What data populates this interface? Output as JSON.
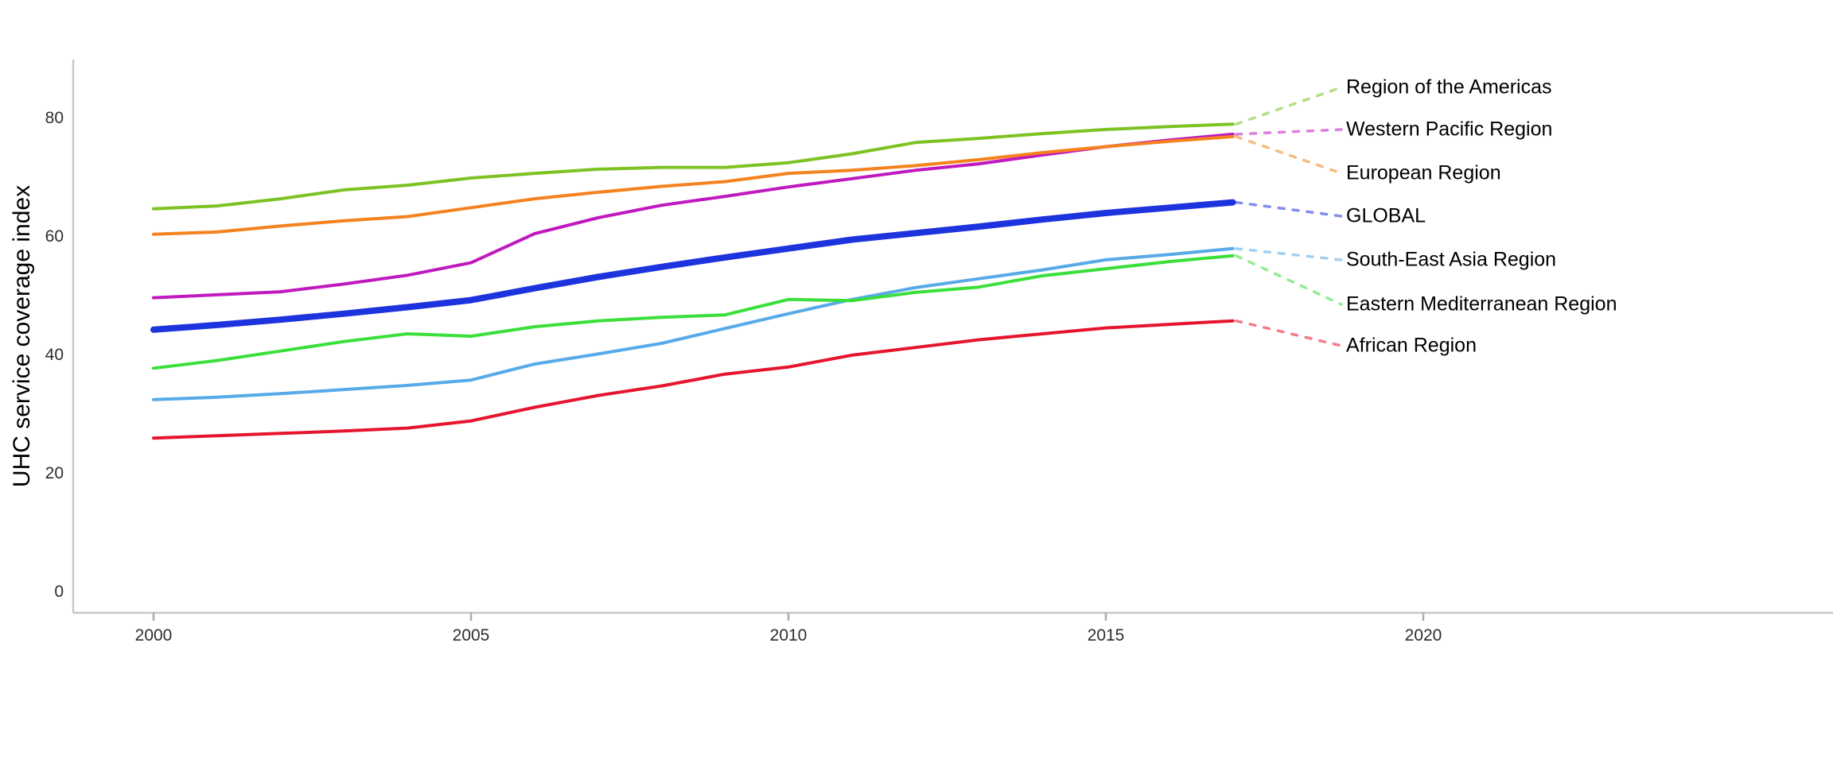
{
  "chart_data": {
    "type": "line",
    "title": "",
    "ylabel": "UHC service coverage index",
    "xlabel": "",
    "x": [
      2000,
      2001,
      2002,
      2003,
      2004,
      2005,
      2006,
      2007,
      2008,
      2009,
      2010,
      2011,
      2012,
      2013,
      2014,
      2015,
      2016,
      2017
    ],
    "xticks": [
      "2000",
      "2005",
      "2010",
      "2015",
      "2020"
    ],
    "xtick_values": [
      2000,
      2005,
      2010,
      2015,
      2020
    ],
    "yticks": [
      "0",
      "20",
      "40",
      "60",
      "80"
    ],
    "ytick_values": [
      0,
      20,
      40,
      60,
      80
    ],
    "ylim": [
      0,
      93
    ],
    "xlim": [
      1998.7,
      2026.5
    ],
    "grid": false,
    "legend_position": "right-edge-annotations-with-dotted-leaders",
    "series": [
      {
        "name": "Region of the Americas",
        "color": "#7DC223",
        "values": [
          64.7,
          65.2,
          66.4,
          67.9,
          68.7,
          69.9,
          70.7,
          71.4,
          71.7,
          71.7,
          72.5,
          74.0,
          75.9,
          76.6,
          77.4,
          78.1,
          78.6,
          79.0
        ]
      },
      {
        "name": "Western Pacific Region",
        "color": "#BF19BF",
        "values": [
          49.7,
          50.2,
          50.7,
          52.0,
          53.5,
          55.6,
          60.5,
          63.2,
          65.3,
          66.8,
          68.4,
          69.8,
          71.2,
          72.3,
          73.8,
          75.2,
          76.3,
          77.3
        ]
      },
      {
        "name": "European Region",
        "color": "#F5821F",
        "values": [
          60.4,
          60.8,
          61.8,
          62.7,
          63.4,
          64.9,
          66.4,
          67.5,
          68.5,
          69.3,
          70.7,
          71.2,
          72.0,
          73.0,
          74.2,
          75.2,
          76.1,
          76.9
        ]
      },
      {
        "name": "GLOBAL",
        "color": "#1D33DE",
        "emphasis": true,
        "values": [
          44.3,
          45.1,
          46.0,
          47.0,
          48.1,
          49.3,
          51.3,
          53.2,
          54.9,
          56.5,
          58.0,
          59.5,
          60.6,
          61.7,
          62.9,
          64.0,
          64.9,
          65.8
        ]
      },
      {
        "name": "South-East Asia Region",
        "color": "#57AAE8",
        "values": [
          32.5,
          32.9,
          33.5,
          34.2,
          34.9,
          35.8,
          38.5,
          40.2,
          42.0,
          44.5,
          47.0,
          49.4,
          51.4,
          52.9,
          54.4,
          56.1,
          57.0,
          58.0
        ]
      },
      {
        "name": "Eastern Mediterranean Region",
        "color": "#3ADF3A",
        "values": [
          37.8,
          39.1,
          40.7,
          42.3,
          43.6,
          43.2,
          44.8,
          45.8,
          46.4,
          46.8,
          49.4,
          49.2,
          50.6,
          51.5,
          53.4,
          54.6,
          55.8,
          56.8
        ]
      },
      {
        "name": "African Region",
        "color": "#E6152E",
        "values": [
          26.0,
          26.4,
          26.8,
          27.2,
          27.7,
          28.9,
          31.2,
          33.2,
          34.8,
          36.8,
          38.0,
          40.0,
          41.3,
          42.6,
          43.6,
          44.6,
          45.2,
          45.8
        ]
      }
    ],
    "colors": {
      "axis_line": "#C7C7C7",
      "tick_mark": "#ADADAD",
      "tick_label": "#2e2e2e",
      "series_label": "#000000",
      "background": "#FFFFFF"
    }
  }
}
